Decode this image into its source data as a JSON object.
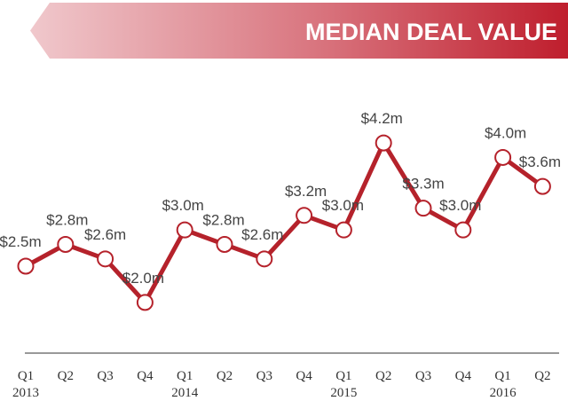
{
  "banner": {
    "title": "MEDIAN DEAL VALUE"
  },
  "colors": {
    "line": "#b5222b",
    "banner_dark": "#bf1e2d",
    "banner_light": "#f0c8cc",
    "axis": "#999999",
    "marker_fill": "#ffffff"
  },
  "chart_data": {
    "type": "line",
    "title": "MEDIAN DEAL VALUE",
    "xlabel": "",
    "ylabel": "",
    "grid": false,
    "x_tick_labels": [
      "Q1",
      "Q2",
      "Q3",
      "Q4",
      "Q1",
      "Q2",
      "Q3",
      "Q4",
      "Q1",
      "Q2",
      "Q3",
      "Q4",
      "Q1",
      "Q2"
    ],
    "year_labels": [
      {
        "label": "2013",
        "index": 0
      },
      {
        "label": "2014",
        "index": 4
      },
      {
        "label": "2015",
        "index": 8
      },
      {
        "label": "2016",
        "index": 12
      }
    ],
    "series": [
      {
        "values": [
          2.5,
          2.8,
          2.6,
          2.0,
          3.0,
          2.8,
          2.6,
          3.2,
          3.0,
          4.2,
          3.3,
          3.0,
          4.0,
          3.6
        ],
        "data_labels": [
          "$2.5m",
          "$2.8m",
          "$2.6m",
          "$2.0m",
          "$3.0m",
          "$2.8m",
          "$2.6m",
          "$3.2m",
          "$3.0m",
          "$4.2m",
          "$3.3m",
          "$3.0m",
          "$4.0m",
          "$3.6m"
        ]
      }
    ]
  }
}
